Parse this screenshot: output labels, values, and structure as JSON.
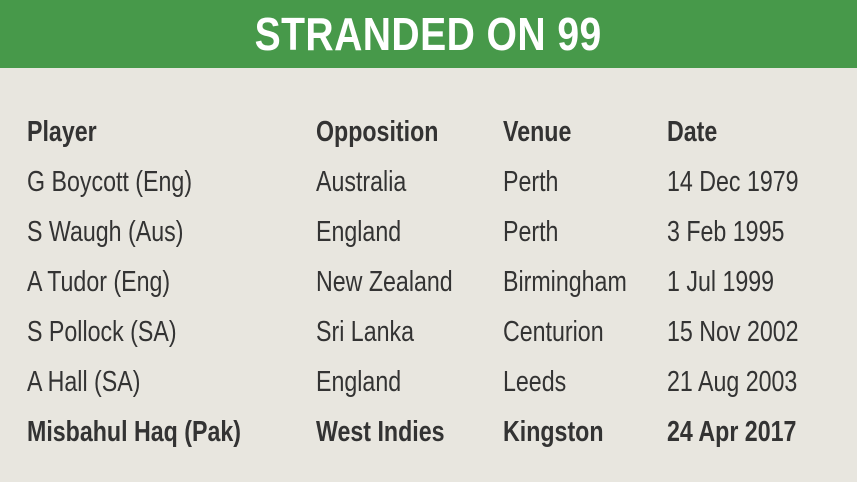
{
  "title": "STRANDED ON 99",
  "colors": {
    "banner": "#47994a",
    "background": "#e8e6df",
    "text": "#333333"
  },
  "headers": [
    "Player",
    "Opposition",
    "Venue",
    "Date"
  ],
  "rows": [
    [
      "G Boycott (Eng)",
      "Australia",
      "Perth",
      "14 Dec 1979"
    ],
    [
      "S Waugh (Aus)",
      "England",
      "Perth",
      "3 Feb 1995"
    ],
    [
      "A Tudor (Eng)",
      "New Zealand",
      "Birmingham",
      "1 Jul 1999"
    ],
    [
      "S Pollock (SA)",
      "Sri Lanka",
      "Centurion",
      "15 Nov 2002"
    ],
    [
      "A Hall (SA)",
      "England",
      "Leeds",
      "21 Aug 2003"
    ],
    [
      "Misbahul Haq (Pak)",
      "West Indies",
      "Kingston",
      "24 Apr 2017"
    ]
  ],
  "highlighted_row": 5
}
